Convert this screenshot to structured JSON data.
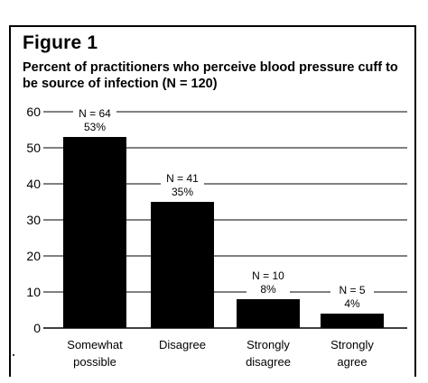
{
  "figure_label": "Figure 1",
  "chart_data": {
    "type": "bar",
    "title": "Percent of practitioners who perceive blood pressure cuff to be source of infection (N = 120)",
    "xlabel": "",
    "ylabel": "",
    "ylim": [
      0,
      60
    ],
    "yticks": [
      "0",
      "10",
      "20",
      "30",
      "40",
      "50",
      "60"
    ],
    "grid": true,
    "categories": [
      [
        "Somewhat",
        "possible"
      ],
      [
        "Disagree"
      ],
      [
        "Strongly",
        "disagree"
      ],
      [
        "Strongly",
        "agree"
      ]
    ],
    "values": [
      53,
      35,
      8,
      4
    ],
    "counts": [
      "N = 64",
      "N = 41",
      "N = 10",
      "N = 5"
    ],
    "labels": [
      "53%",
      "35%",
      "8%",
      "4%"
    ],
    "bar_color": "#000000"
  }
}
